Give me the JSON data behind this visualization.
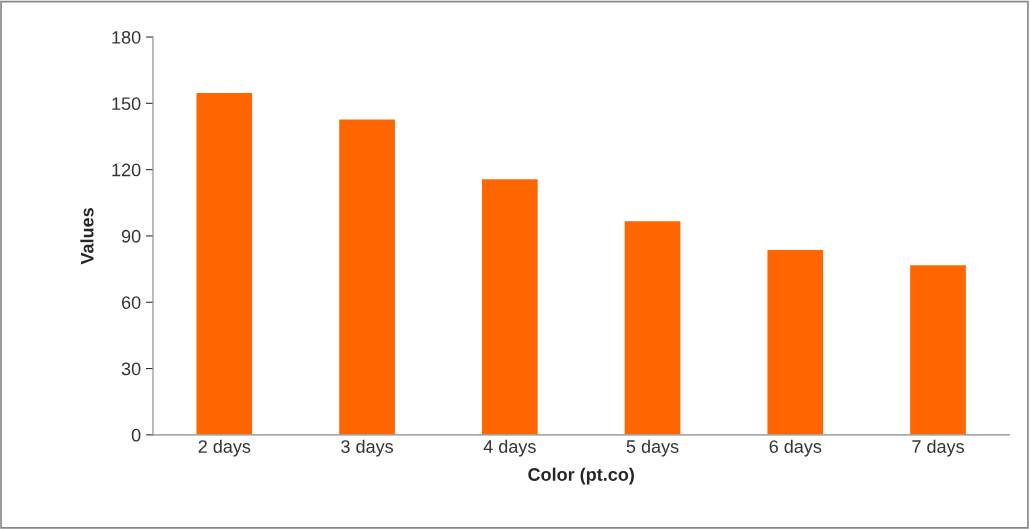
{
  "chart_data": {
    "type": "bar",
    "xlabel": "Color (pt.co)",
    "ylabel": "Values",
    "categories": [
      "2 days",
      "3 days",
      "4 days",
      "5 days",
      "6 days",
      "7 days"
    ],
    "values": [
      155,
      143,
      116,
      97,
      84,
      77
    ],
    "color": "#ff6600",
    "ylim": [
      0,
      180
    ],
    "yticks": [
      0,
      30,
      60,
      90,
      120,
      150,
      180
    ],
    "grid": false
  }
}
